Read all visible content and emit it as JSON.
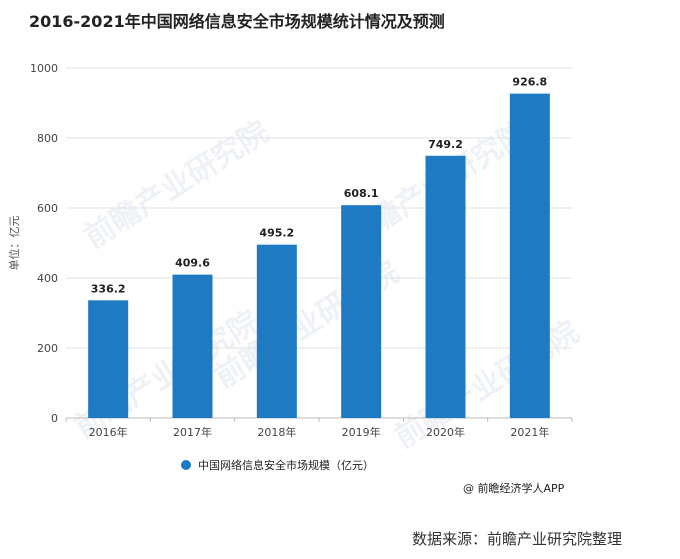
{
  "title": "2016-2021年中国网络信息安全市场规模统计情况及预测",
  "credit": "@ 前瞻经济学人APP",
  "source": "数据来源：前瞻产业研究院整理",
  "watermark": "前瞻产业研究院",
  "colors": {
    "bar": "#1f7ac4",
    "grid": "#e2e2e2",
    "axis": "#bdbdbd"
  },
  "chart_data": {
    "type": "bar",
    "categories": [
      "2016年",
      "2017年",
      "2018年",
      "2019年",
      "2020年",
      "2021年"
    ],
    "series": [
      {
        "name": "中国网络信息安全市场规模（亿元）",
        "values": [
          336.2,
          409.6,
          495.2,
          608.1,
          749.2,
          926.8
        ]
      }
    ],
    "data_labels": [
      "336.2",
      "409.6",
      "495.2",
      "608.1",
      "749.2",
      "926.8"
    ],
    "ylabel": "单位：亿元",
    "ylim": [
      0,
      1000
    ],
    "yticks": [
      0,
      200,
      400,
      600,
      800,
      1000
    ],
    "grid": true,
    "legend": "bottom-center"
  }
}
